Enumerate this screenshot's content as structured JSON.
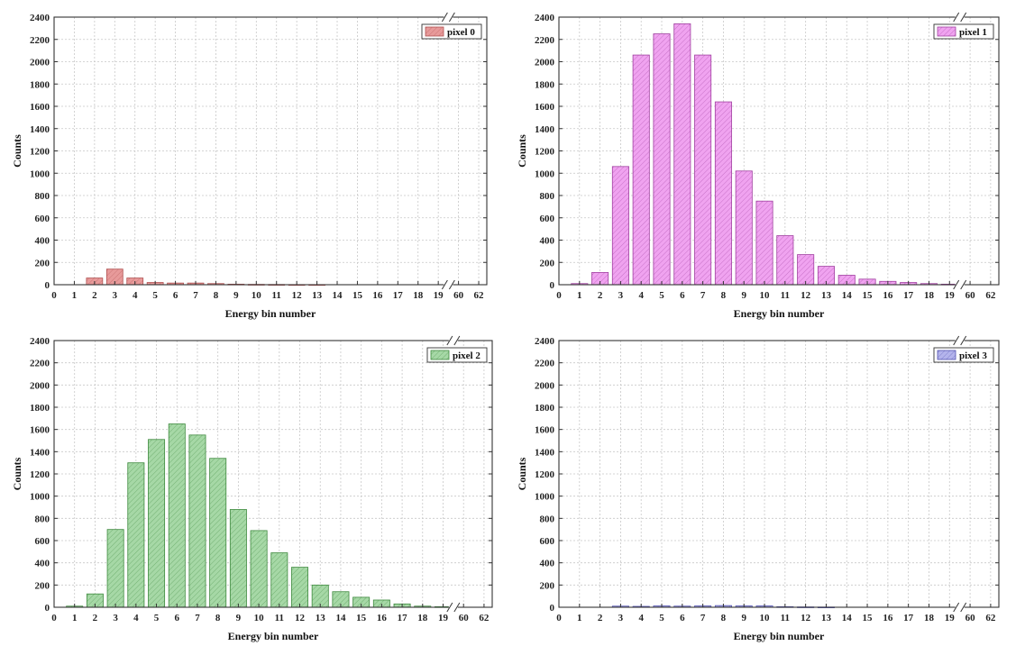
{
  "chart_data": [
    {
      "type": "bar",
      "legend": "pixel 0",
      "xlabel": "Energy bin number",
      "ylabel": "Counts",
      "ylim": [
        0,
        2400
      ],
      "y_ticks": [
        0,
        200,
        400,
        600,
        800,
        1000,
        1200,
        1400,
        1600,
        1800,
        2000,
        2200,
        2400
      ],
      "x_ticks": [
        "0",
        "1",
        "2",
        "3",
        "4",
        "5",
        "6",
        "7",
        "8",
        "9",
        "10",
        "11",
        "12",
        "13",
        "14",
        "15",
        "16",
        "17",
        "18",
        "19",
        "60",
        "62"
      ],
      "axis_break": "between 19 and 60",
      "grid": true,
      "legend_position": "top-right",
      "color": "#e79a9a",
      "stroke": "#b05050",
      "x": [
        0,
        1,
        2,
        3,
        4,
        5,
        6,
        7,
        8,
        9,
        10,
        11,
        12,
        13,
        14,
        15,
        16,
        17,
        18,
        19
      ],
      "values": [
        0,
        0,
        60,
        140,
        60,
        20,
        15,
        15,
        10,
        5,
        3,
        2,
        1,
        1,
        0,
        0,
        0,
        0,
        0,
        0
      ]
    },
    {
      "type": "bar",
      "legend": "pixel 1",
      "xlabel": "Energy bin number",
      "ylabel": "Counts",
      "ylim": [
        0,
        2400
      ],
      "y_ticks": [
        0,
        200,
        400,
        600,
        800,
        1000,
        1200,
        1400,
        1600,
        1800,
        2000,
        2200,
        2400
      ],
      "x_ticks": [
        "0",
        "1",
        "2",
        "3",
        "4",
        "5",
        "6",
        "7",
        "8",
        "9",
        "10",
        "11",
        "12",
        "13",
        "14",
        "15",
        "16",
        "17",
        "18",
        "19",
        "60",
        "62"
      ],
      "axis_break": "between 19 and 60",
      "grid": true,
      "legend_position": "top-right",
      "color": "#f0a3f0",
      "stroke": "#a040a0",
      "x": [
        0,
        1,
        2,
        3,
        4,
        5,
        6,
        7,
        8,
        9,
        10,
        11,
        12,
        13,
        14,
        15,
        16,
        17,
        18,
        19
      ],
      "values": [
        0,
        10,
        110,
        1060,
        2060,
        2250,
        2340,
        2060,
        1640,
        1020,
        750,
        440,
        270,
        165,
        85,
        50,
        30,
        20,
        10,
        5
      ]
    },
    {
      "type": "bar",
      "legend": "pixel 2",
      "xlabel": "Energy bin number",
      "ylabel": "Counts",
      "ylim": [
        0,
        2400
      ],
      "y_ticks": [
        0,
        200,
        400,
        600,
        800,
        1000,
        1200,
        1400,
        1600,
        1800,
        2000,
        2200,
        2400
      ],
      "x_ticks": [
        "0",
        "1",
        "2",
        "3",
        "4",
        "5",
        "6",
        "7",
        "8",
        "9",
        "10",
        "11",
        "12",
        "13",
        "14",
        "15",
        "16",
        "17",
        "18",
        "19",
        "60",
        "62"
      ],
      "axis_break": "between 19 and 60",
      "grid": true,
      "legend_position": "top-right",
      "color": "#a6d8a6",
      "stroke": "#3f8a3f",
      "x": [
        0,
        1,
        2,
        3,
        4,
        5,
        6,
        7,
        8,
        9,
        10,
        11,
        12,
        13,
        14,
        15,
        16,
        17,
        18,
        19
      ],
      "values": [
        0,
        10,
        120,
        700,
        1300,
        1510,
        1650,
        1550,
        1340,
        880,
        690,
        490,
        360,
        200,
        140,
        90,
        65,
        30,
        10,
        5
      ]
    },
    {
      "type": "bar",
      "legend": "pixel 3",
      "xlabel": "Energy bin number",
      "ylabel": "Counts",
      "ylim": [
        0,
        2400
      ],
      "y_ticks": [
        0,
        200,
        400,
        600,
        800,
        1000,
        1200,
        1400,
        1600,
        1800,
        2000,
        2200,
        2400
      ],
      "x_ticks": [
        "0",
        "1",
        "2",
        "3",
        "4",
        "5",
        "6",
        "7",
        "8",
        "9",
        "10",
        "11",
        "12",
        "13",
        "14",
        "15",
        "16",
        "17",
        "18",
        "19",
        "60",
        "62"
      ],
      "axis_break": "between 19 and 60",
      "grid": true,
      "legend_position": "top-right",
      "color": "#b4b4ec",
      "stroke": "#5050b0",
      "x": [
        0,
        1,
        2,
        3,
        4,
        5,
        6,
        7,
        8,
        9,
        10,
        11,
        12,
        13,
        14,
        15,
        16,
        17,
        18,
        19
      ],
      "values": [
        0,
        0,
        0,
        10,
        8,
        12,
        10,
        12,
        15,
        12,
        12,
        5,
        3,
        2,
        0,
        0,
        0,
        0,
        0,
        0
      ]
    }
  ]
}
